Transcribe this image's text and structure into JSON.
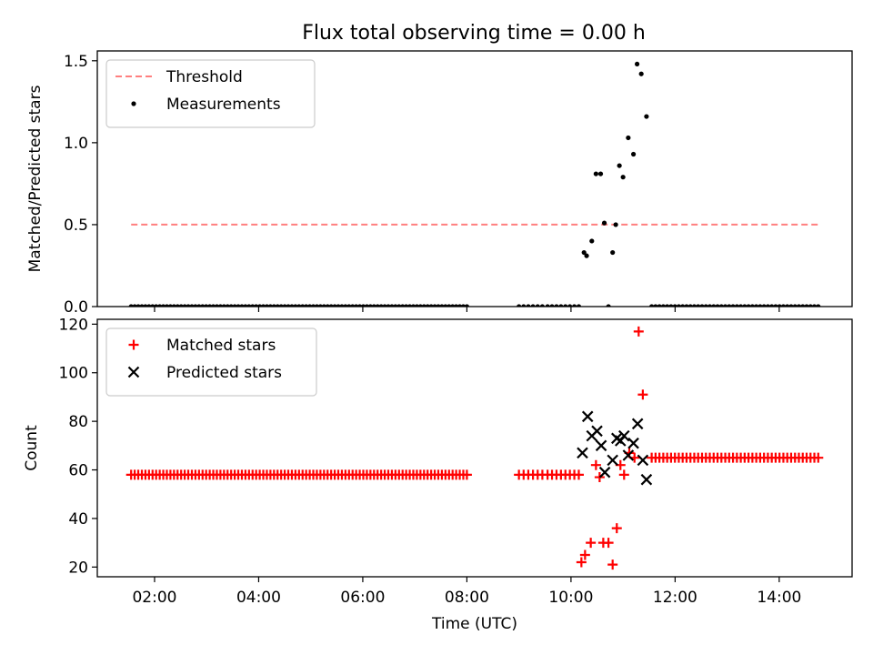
{
  "figure_title": "Flux total observing time = 0.00 h",
  "chart_data": [
    {
      "type": "scatter",
      "title": "Flux total observing time = 0.00 h",
      "xlabel": "",
      "ylabel": "Matched/Predicted stars",
      "xlim": [
        0.9,
        15.4
      ],
      "ylim": [
        0,
        1.56
      ],
      "yticks": [
        0.0,
        0.5,
        1.0,
        1.5
      ],
      "ytick_labels": [
        "0.0",
        "0.5",
        "1.0",
        "1.5"
      ],
      "grid": false,
      "legend_placement": "upper-left",
      "series": [
        {
          "name": "Threshold",
          "kind": "line",
          "style": "dashed",
          "color": "#ff7f7f",
          "x": [
            1.55,
            14.75
          ],
          "y": [
            0.5,
            0.5
          ]
        },
        {
          "name": "Measurements",
          "kind": "scatter",
          "marker": "dot",
          "color": "#000000",
          "points": [
            [
              10.25,
              0.33
            ],
            [
              10.3,
              0.31
            ],
            [
              10.4,
              0.4
            ],
            [
              10.48,
              0.81
            ],
            [
              10.57,
              0.81
            ],
            [
              10.64,
              0.51
            ],
            [
              10.72,
              0.0
            ],
            [
              10.8,
              0.33
            ],
            [
              10.86,
              0.5
            ],
            [
              10.93,
              0.86
            ],
            [
              11.0,
              0.79
            ],
            [
              11.1,
              1.03
            ],
            [
              11.2,
              0.93
            ],
            [
              11.27,
              1.48
            ],
            [
              11.35,
              1.42
            ],
            [
              11.45,
              1.16
            ]
          ],
          "zero_runs": [
            {
              "start": 1.55,
              "end": 8.0,
              "count": 95
            },
            {
              "start": 9.0,
              "end": 9.45,
              "count": 6
            },
            {
              "start": 9.55,
              "end": 10.15,
              "count": 8
            },
            {
              "start": 11.55,
              "end": 14.75,
              "count": 44
            }
          ]
        }
      ]
    },
    {
      "type": "scatter",
      "xlabel": "Time (UTC)",
      "ylabel": "Count",
      "xlim": [
        0.9,
        15.4
      ],
      "ylim": [
        16,
        122
      ],
      "xticks": [
        2,
        4,
        6,
        8,
        10,
        12,
        14
      ],
      "xtick_labels": [
        "02:00",
        "04:00",
        "06:00",
        "08:00",
        "10:00",
        "12:00",
        "14:00"
      ],
      "yticks": [
        20,
        40,
        60,
        80,
        100,
        120
      ],
      "ytick_labels": [
        "20",
        "40",
        "60",
        "80",
        "100",
        "120"
      ],
      "grid": false,
      "legend_placement": "upper-left",
      "series": [
        {
          "name": "Matched stars",
          "kind": "scatter",
          "marker": "plus",
          "color": "#ff0000",
          "points": [
            [
              10.2,
              22
            ],
            [
              10.27,
              25
            ],
            [
              10.38,
              30
            ],
            [
              10.48,
              62
            ],
            [
              10.55,
              57
            ],
            [
              10.62,
              30
            ],
            [
              10.72,
              30
            ],
            [
              10.8,
              21
            ],
            [
              10.88,
              36
            ],
            [
              10.95,
              62
            ],
            [
              11.02,
              58
            ],
            [
              11.12,
              67
            ],
            [
              11.22,
              65
            ],
            [
              11.3,
              117
            ],
            [
              11.38,
              91
            ]
          ],
          "constant_runs": [
            {
              "start": 1.55,
              "end": 8.0,
              "count": 95,
              "value": 58
            },
            {
              "start": 9.0,
              "end": 9.45,
              "count": 6,
              "value": 58
            },
            {
              "start": 9.55,
              "end": 10.15,
              "count": 8,
              "value": 58
            },
            {
              "start": 11.55,
              "end": 14.75,
              "count": 44,
              "value": 65
            }
          ]
        },
        {
          "name": "Predicted stars",
          "kind": "scatter",
          "marker": "x",
          "color": "#000000",
          "points": [
            [
              10.22,
              67
            ],
            [
              10.32,
              82
            ],
            [
              10.4,
              74
            ],
            [
              10.5,
              76
            ],
            [
              10.58,
              70
            ],
            [
              10.65,
              59
            ],
            [
              10.8,
              64
            ],
            [
              10.88,
              73
            ],
            [
              10.95,
              72
            ],
            [
              11.02,
              74
            ],
            [
              11.1,
              66
            ],
            [
              11.2,
              71
            ],
            [
              11.28,
              79
            ],
            [
              11.38,
              64
            ],
            [
              11.45,
              56
            ]
          ]
        }
      ]
    }
  ]
}
